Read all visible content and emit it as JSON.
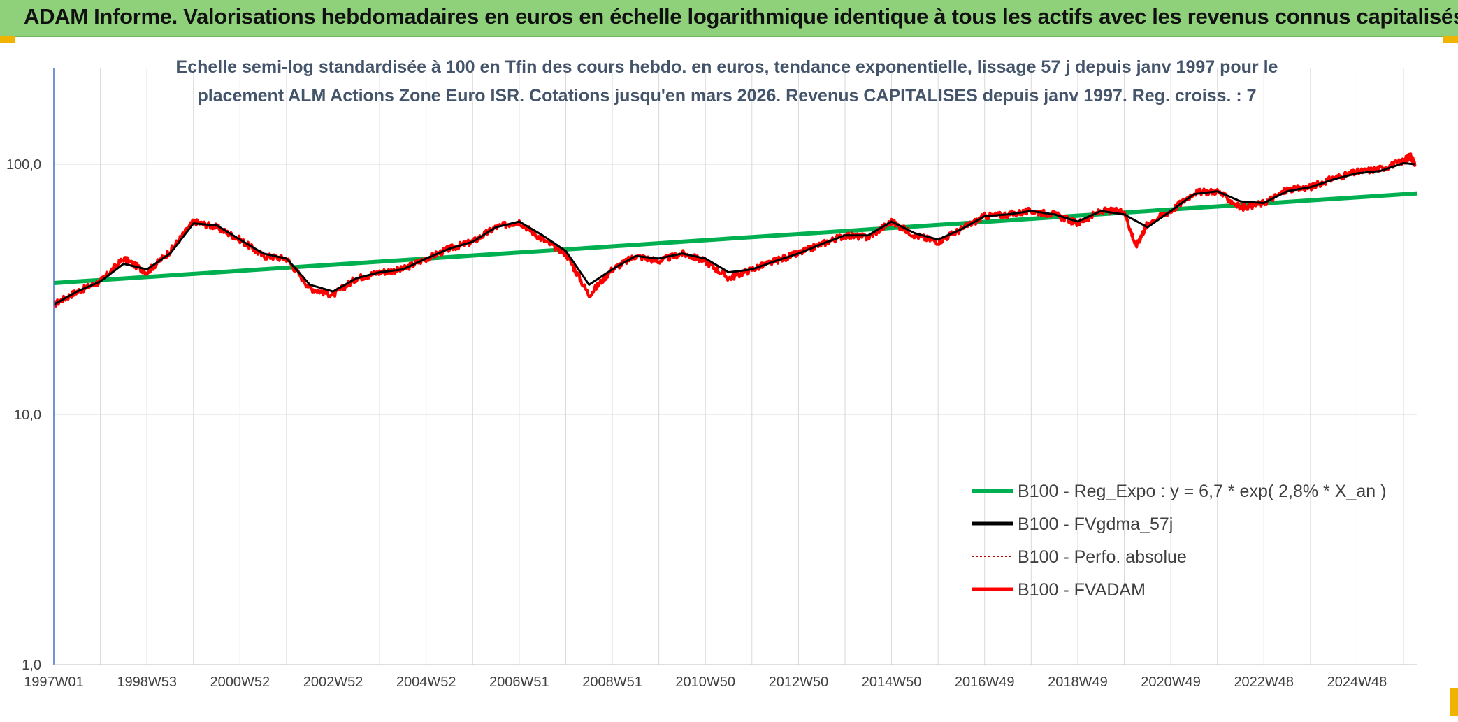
{
  "banner": {
    "title": "ADAM Informe. Valorisations hebdomadaires en euros en échelle logarithmique identique à tous les actifs avec les revenus connus capitalisés"
  },
  "colors": {
    "banner_bg": "#8fd07a",
    "regression": "#00b050",
    "smoothed": "#000000",
    "perfo": "#c00000",
    "fvadam": "#ff0000",
    "subtitle": "#44546a",
    "corner_accent": "#f0b400"
  },
  "chart_data": {
    "type": "line",
    "title_lines": [
      "Echelle semi-log standardisée à 100 en Tfin des cours hebdo. en euros, tendance exponentielle, lissage 57 j depuis janv 1997 pour le",
      "placement ALM Actions Zone Euro ISR. Cotations jusqu'en mars 2026. Revenus CAPITALISES depuis janv 1997. Reg. croiss. : 7"
    ],
    "y_scale": "log",
    "ylim": [
      1,
      200
    ],
    "y_ticks": [
      "1,0",
      "10,0",
      "100,0"
    ],
    "y_tick_values": [
      1,
      10,
      100
    ],
    "x_ticks": [
      "1997W01",
      "1998W53",
      "2000W52",
      "2002W52",
      "2004W52",
      "2006W51",
      "2008W51",
      "2010W50",
      "2012W50",
      "2014W50",
      "2016W49",
      "2018W49",
      "2020W49",
      "2022W48",
      "2024W48"
    ],
    "x_tick_years": [
      1997.0,
      1999.0,
      2001.0,
      2003.0,
      2005.0,
      2007.0,
      2009.0,
      2011.0,
      2013.0,
      2015.0,
      2017.0,
      2019.0,
      2021.0,
      2023.0,
      2025.0
    ],
    "xlim": [
      1997.0,
      2026.3
    ],
    "grid": true,
    "legend_position": "bottom-right",
    "series": [
      {
        "name": "B100 - Reg_Expo : y = 6,7 * exp( 2,8% *  X_an )",
        "kind": "regression",
        "x": [
          1997.0,
          2026.3
        ],
        "values": [
          33.5,
          76.5
        ]
      },
      {
        "name": "B100 - FVgdma_57j",
        "kind": "smoothed",
        "x": [
          1997.0,
          1997.5,
          1998.0,
          1998.5,
          1999.0,
          1999.5,
          2000.0,
          2000.5,
          2001.0,
          2001.5,
          2002.0,
          2002.5,
          2003.0,
          2003.5,
          2004.0,
          2004.5,
          2005.0,
          2005.5,
          2006.0,
          2006.5,
          2007.0,
          2007.5,
          2008.0,
          2008.5,
          2009.0,
          2009.5,
          2010.0,
          2010.5,
          2011.0,
          2011.5,
          2012.0,
          2012.5,
          2013.0,
          2013.5,
          2014.0,
          2014.5,
          2015.0,
          2015.5,
          2016.0,
          2016.5,
          2017.0,
          2017.5,
          2018.0,
          2018.5,
          2019.0,
          2019.5,
          2020.0,
          2020.5,
          2021.0,
          2021.5,
          2022.0,
          2022.5,
          2023.0,
          2023.5,
          2024.0,
          2024.5,
          2025.0,
          2025.5,
          2026.0,
          2026.25
        ],
        "values": [
          27.5,
          31,
          34,
          40,
          38,
          44,
          58,
          57,
          50,
          44,
          42,
          33,
          31,
          35,
          37,
          38,
          42,
          46,
          49,
          56,
          59,
          52,
          45,
          33,
          38,
          43,
          42,
          44,
          42,
          37,
          38,
          41,
          44,
          48,
          52,
          52,
          59,
          53,
          50,
          55,
          62,
          63,
          65,
          63,
          59,
          65,
          63,
          56,
          65,
          76,
          78,
          71,
          70,
          78,
          81,
          87,
          92,
          94,
          101,
          100
        ]
      },
      {
        "name": "B100 - Perfo. absolue",
        "kind": "perfo",
        "x": [
          1997.0,
          1997.5,
          1998.0,
          1998.5,
          1999.0,
          1999.5,
          2000.0,
          2000.5,
          2001.0,
          2001.5,
          2002.0,
          2002.5,
          2003.0,
          2003.5,
          2004.0,
          2004.5,
          2005.0,
          2005.5,
          2006.0,
          2006.5,
          2007.0,
          2007.5,
          2008.0,
          2008.5,
          2009.0,
          2009.5,
          2010.0,
          2010.5,
          2011.0,
          2011.5,
          2012.0,
          2012.5,
          2013.0,
          2013.5,
          2014.0,
          2014.5,
          2015.0,
          2015.5,
          2016.0,
          2016.5,
          2017.0,
          2017.5,
          2018.0,
          2018.5,
          2019.0,
          2019.5,
          2020.0,
          2020.25,
          2020.5,
          2021.0,
          2021.5,
          2022.0,
          2022.5,
          2023.0,
          2023.5,
          2024.0,
          2024.5,
          2025.0,
          2025.5,
          2026.0,
          2026.15,
          2026.25
        ],
        "values": [
          27.5,
          31,
          34,
          42,
          37,
          45,
          59,
          56,
          50,
          43,
          42,
          32,
          30,
          35,
          37,
          38,
          42,
          46,
          49,
          56,
          59,
          50,
          44,
          30,
          38,
          43,
          41,
          44,
          41,
          35,
          38,
          41,
          44,
          48,
          52,
          51,
          59,
          52,
          49,
          55,
          62,
          63,
          65,
          63,
          58,
          65,
          65,
          47,
          58,
          65,
          77,
          78,
          67,
          70,
          79,
          81,
          88,
          93,
          96,
          103,
          108,
          100
        ]
      },
      {
        "name": "B100 - FVADAM",
        "kind": "fvadam",
        "x": [
          1997.0,
          1997.5,
          1998.0,
          1998.5,
          1999.0,
          1999.5,
          2000.0,
          2000.5,
          2001.0,
          2001.5,
          2002.0,
          2002.5,
          2003.0,
          2003.5,
          2004.0,
          2004.5,
          2005.0,
          2005.5,
          2006.0,
          2006.5,
          2007.0,
          2007.5,
          2008.0,
          2008.5,
          2009.0,
          2009.5,
          2010.0,
          2010.5,
          2011.0,
          2011.5,
          2012.0,
          2012.5,
          2013.0,
          2013.5,
          2014.0,
          2014.5,
          2015.0,
          2015.5,
          2016.0,
          2016.5,
          2017.0,
          2017.5,
          2018.0,
          2018.5,
          2019.0,
          2019.5,
          2020.0,
          2020.25,
          2020.5,
          2021.0,
          2021.5,
          2022.0,
          2022.5,
          2023.0,
          2023.5,
          2024.0,
          2024.5,
          2025.0,
          2025.5,
          2026.0,
          2026.15,
          2026.25
        ],
        "values": [
          27.5,
          31,
          34,
          42,
          37,
          45,
          59,
          56,
          50,
          43,
          42,
          32,
          30,
          35,
          37,
          38,
          42,
          46,
          49,
          56,
          59,
          50,
          44,
          30,
          38,
          43,
          41,
          44,
          41,
          35,
          38,
          41,
          44,
          48,
          52,
          51,
          59,
          52,
          49,
          55,
          62,
          63,
          65,
          63,
          58,
          65,
          65,
          47,
          58,
          65,
          77,
          78,
          67,
          70,
          79,
          81,
          88,
          93,
          96,
          103,
          108,
          100
        ]
      }
    ]
  }
}
